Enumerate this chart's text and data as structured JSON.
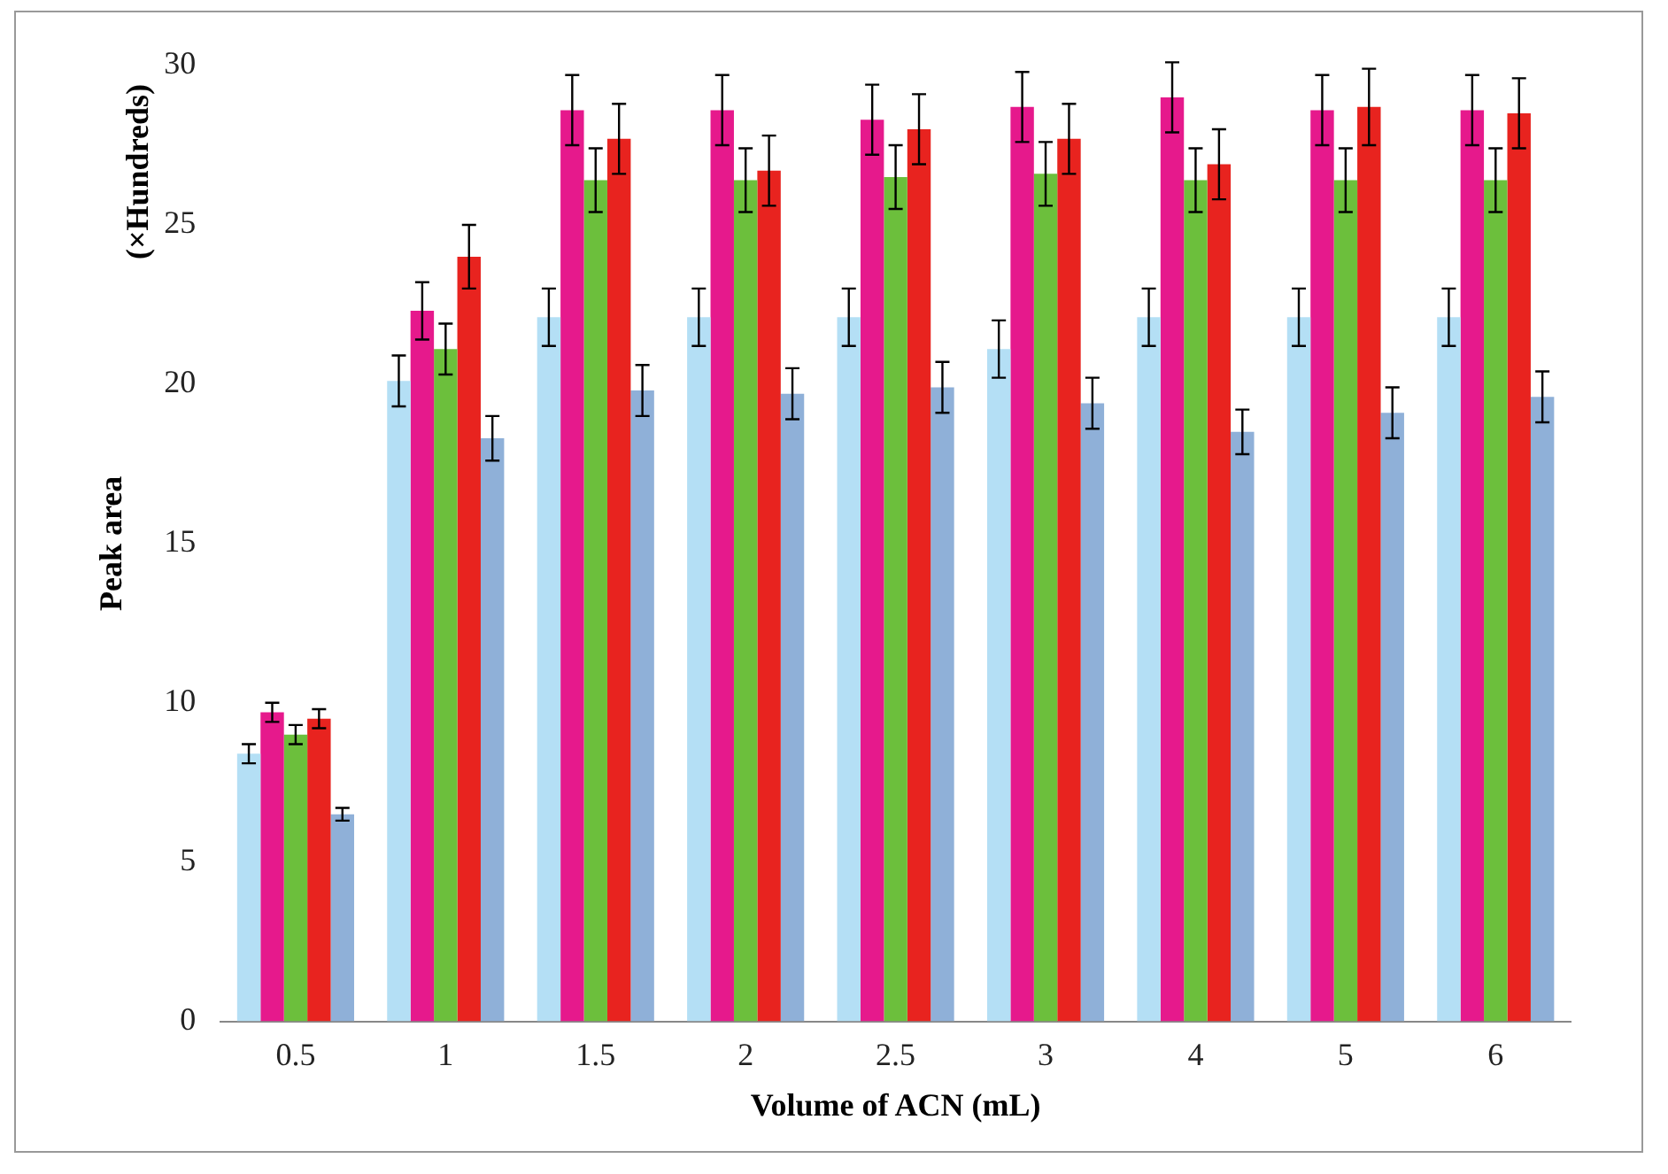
{
  "chart_data": {
    "type": "bar",
    "xlabel": "Volume of ACN (mL)",
    "ylabel": "Peak area",
    "y2label": "(×Hundreds)",
    "categories": [
      "0.5",
      "1",
      "1.5",
      "2",
      "2.5",
      "3",
      "4",
      "5",
      "6"
    ],
    "ylim": [
      0,
      30
    ],
    "yticks": [
      0,
      5,
      10,
      15,
      20,
      25,
      30
    ],
    "grid": false,
    "legend": false,
    "series": [
      {
        "color": "#b4dff5",
        "values": [
          8.4,
          20.1,
          22.1,
          22.1,
          22.1,
          21.1,
          22.1,
          22.1,
          22.1
        ],
        "errors": [
          0.3,
          0.8,
          0.9,
          0.9,
          0.9,
          0.9,
          0.9,
          0.9,
          0.9
        ]
      },
      {
        "color": "#e6198c",
        "values": [
          9.7,
          22.3,
          28.6,
          28.6,
          28.3,
          28.7,
          29.0,
          28.6,
          28.6
        ],
        "errors": [
          0.3,
          0.9,
          1.1,
          1.1,
          1.1,
          1.1,
          1.1,
          1.1,
          1.1
        ]
      },
      {
        "color": "#6cbf3c",
        "values": [
          9.0,
          21.1,
          26.4,
          26.4,
          26.5,
          26.6,
          26.4,
          26.4,
          26.4
        ],
        "errors": [
          0.3,
          0.8,
          1.0,
          1.0,
          1.0,
          1.0,
          1.0,
          1.0,
          1.0
        ]
      },
      {
        "color": "#e8231f",
        "values": [
          9.5,
          24.0,
          27.7,
          26.7,
          28.0,
          27.7,
          26.9,
          28.7,
          28.5
        ],
        "errors": [
          0.3,
          1.0,
          1.1,
          1.1,
          1.1,
          1.1,
          1.1,
          1.2,
          1.1
        ]
      },
      {
        "color": "#8fb0d8",
        "values": [
          6.5,
          18.3,
          19.8,
          19.7,
          19.9,
          19.4,
          18.5,
          19.1,
          19.6
        ],
        "errors": [
          0.2,
          0.7,
          0.8,
          0.8,
          0.8,
          0.8,
          0.7,
          0.8,
          0.8
        ]
      }
    ]
  }
}
